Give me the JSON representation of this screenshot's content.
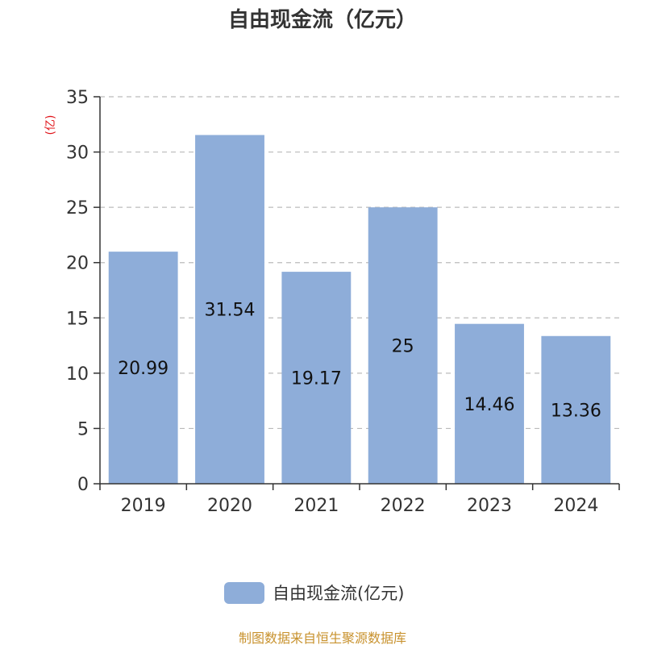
{
  "source_text": "制图数据来自恒生聚源数据库",
  "chart_data": {
    "type": "bar",
    "title": "自由现金流（亿元）",
    "ylabel": "(亿)",
    "xlabel": "",
    "categories": [
      "2019",
      "2020",
      "2021",
      "2022",
      "2023",
      "2024"
    ],
    "series": [
      {
        "name": "自由现金流(亿元)",
        "values": [
          20.99,
          31.54,
          19.17,
          25,
          14.46,
          13.36
        ],
        "data_labels": [
          "20.99",
          "31.54",
          "19.17",
          "25",
          "14.46",
          "13.36"
        ]
      }
    ],
    "ylim": [
      0,
      35
    ],
    "yticks": [
      0,
      5,
      10,
      15,
      20,
      25,
      30,
      35
    ],
    "grid": true,
    "legend_position": "bottom",
    "colors": {
      "bar": "#8eadd9",
      "axis": "#333333",
      "grid": "#bbbbbb",
      "ylabel": "#e0141a",
      "label": "#111111"
    }
  }
}
